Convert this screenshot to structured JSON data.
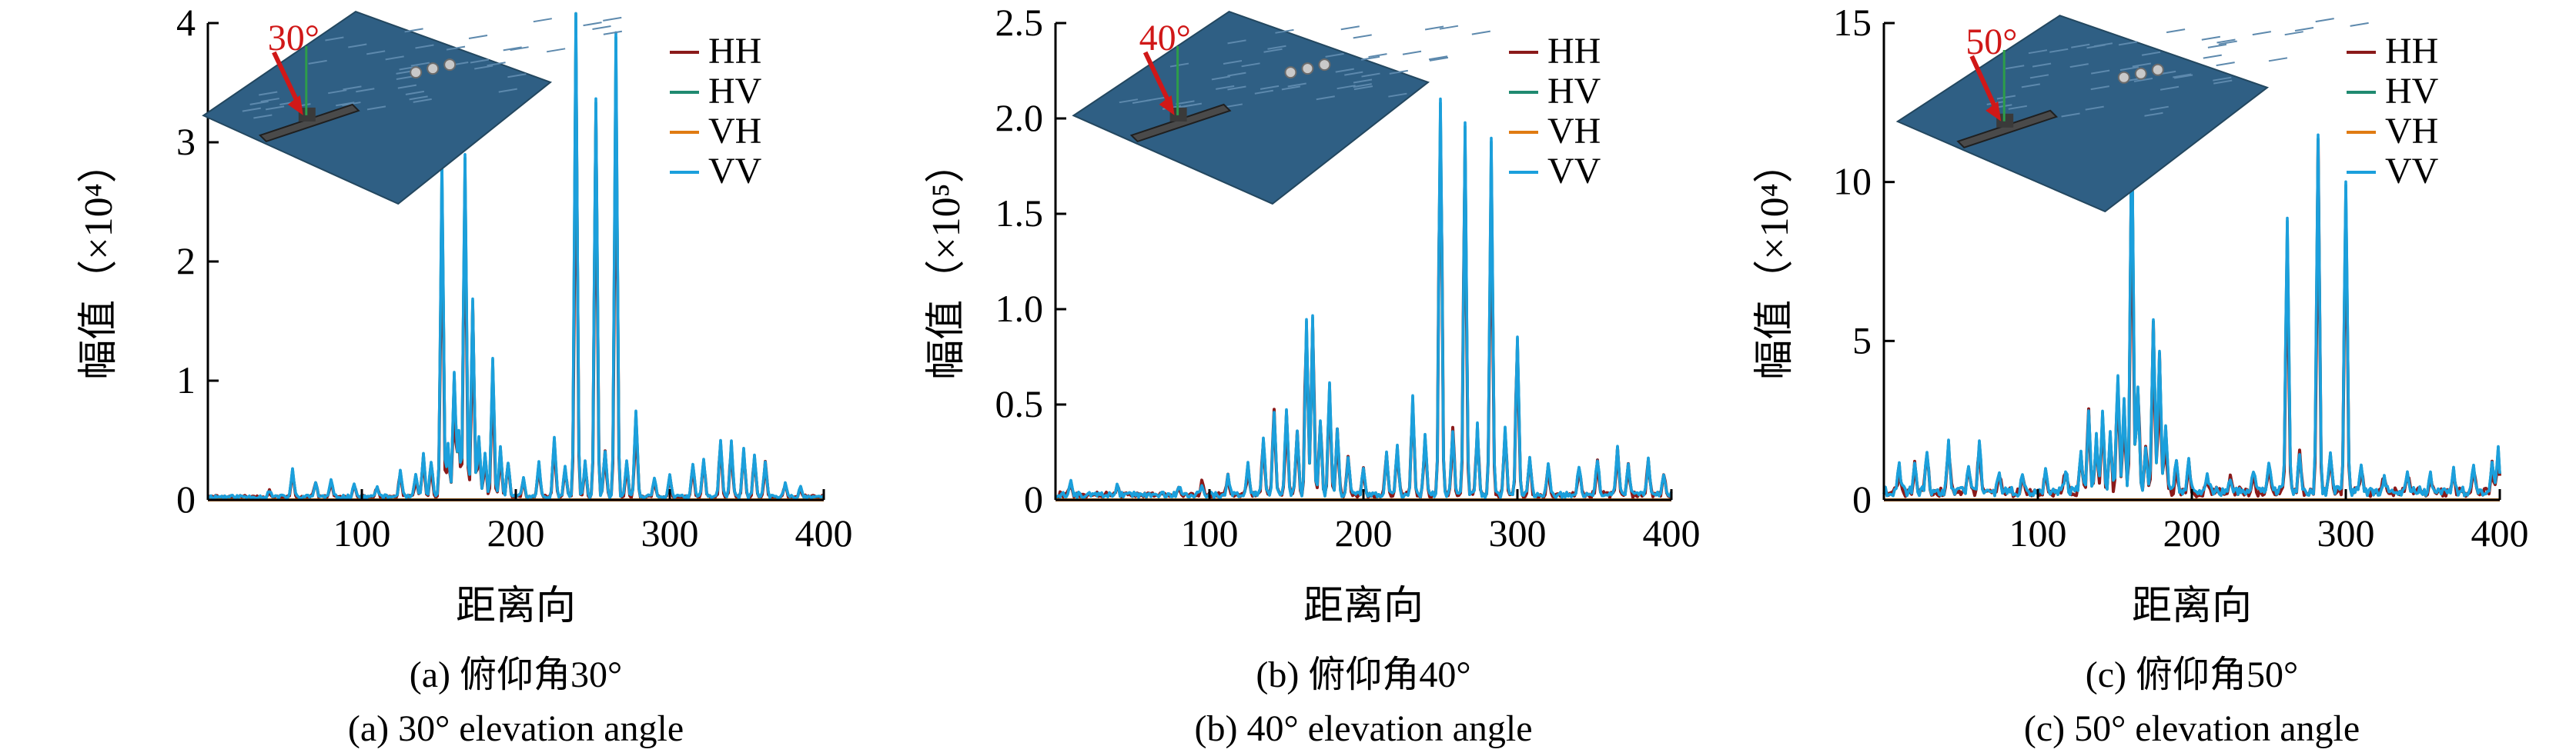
{
  "figure": {
    "colors": {
      "HH": "#8b1a1a",
      "HV": "#1f8a70",
      "VH": "#e07b12",
      "VV": "#1b9fdc",
      "annotation": "#d01818",
      "sea": "#2f5f84"
    },
    "icons": [
      "ship-scene-inset",
      "red-arrow-icon"
    ]
  },
  "chart_data": [
    {
      "type": "line",
      "panel": "a",
      "title": "",
      "xlabel": "距离向",
      "ylabel": "幅值（×10⁴）",
      "xlim": [
        0,
        400
      ],
      "ylim": [
        0,
        4
      ],
      "xticks": [
        "100",
        "200",
        "300",
        "400"
      ],
      "yticks": [
        "0",
        "1",
        "2",
        "3",
        "4"
      ],
      "legend": [
        "HH",
        "HV",
        "VH",
        "VV"
      ],
      "legend_position": "top-right",
      "annotation": "30°",
      "caption_cn": "(a) 俯仰角30°",
      "caption_en": "(a) 30° elevation angle",
      "noise_level": 0.03,
      "hh_scale": 0.88,
      "peaks": [
        [
          40,
          0.05
        ],
        [
          55,
          0.22
        ],
        [
          70,
          0.12
        ],
        [
          80,
          0.14
        ],
        [
          95,
          0.12
        ],
        [
          110,
          0.08
        ],
        [
          125,
          0.22
        ],
        [
          135,
          0.18
        ],
        [
          140,
          0.35
        ],
        [
          145,
          0.3
        ],
        [
          152,
          2.8
        ],
        [
          156,
          0.45
        ],
        [
          160,
          1.0
        ],
        [
          163,
          0.55
        ],
        [
          167,
          2.9
        ],
        [
          172,
          1.7
        ],
        [
          176,
          0.5
        ],
        [
          180,
          0.35
        ],
        [
          185,
          1.15
        ],
        [
          190,
          0.4
        ],
        [
          195,
          0.3
        ],
        [
          205,
          0.15
        ],
        [
          215,
          0.3
        ],
        [
          225,
          0.5
        ],
        [
          232,
          0.25
        ],
        [
          239,
          3.95
        ],
        [
          245,
          0.3
        ],
        [
          252,
          3.35
        ],
        [
          258,
          0.4
        ],
        [
          265,
          3.75
        ],
        [
          272,
          0.3
        ],
        [
          278,
          0.7
        ],
        [
          290,
          0.15
        ],
        [
          300,
          0.18
        ],
        [
          315,
          0.28
        ],
        [
          322,
          0.32
        ],
        [
          333,
          0.5
        ],
        [
          340,
          0.45
        ],
        [
          348,
          0.4
        ],
        [
          355,
          0.35
        ],
        [
          362,
          0.3
        ],
        [
          375,
          0.12
        ],
        [
          385,
          0.08
        ]
      ]
    },
    {
      "type": "line",
      "panel": "b",
      "title": "",
      "xlabel": "距离向",
      "ylabel": "幅值（×10⁵）",
      "xlim": [
        0,
        400
      ],
      "ylim": [
        0,
        2.5
      ],
      "xticks": [
        "100",
        "200",
        "300",
        "400"
      ],
      "yticks": [
        "0",
        "0.5",
        "1.0",
        "1.5",
        "2.0",
        "2.5"
      ],
      "legend": [
        "HH",
        "HV",
        "VH",
        "VV"
      ],
      "legend_position": "top-right",
      "annotation": "40°",
      "caption_cn": "(b) 俯仰角40°",
      "caption_en": "(b) 40° elevation angle",
      "noise_level": 0.03,
      "hh_scale": 0.94,
      "peaks": [
        [
          10,
          0.06
        ],
        [
          40,
          0.05
        ],
        [
          80,
          0.05
        ],
        [
          95,
          0.06
        ],
        [
          112,
          0.1
        ],
        [
          125,
          0.15
        ],
        [
          135,
          0.3
        ],
        [
          142,
          0.45
        ],
        [
          150,
          0.45
        ],
        [
          157,
          0.35
        ],
        [
          163,
          0.95
        ],
        [
          167,
          0.9
        ],
        [
          172,
          0.4
        ],
        [
          178,
          0.6
        ],
        [
          183,
          0.35
        ],
        [
          190,
          0.2
        ],
        [
          200,
          0.15
        ],
        [
          215,
          0.2
        ],
        [
          222,
          0.25
        ],
        [
          232,
          0.5
        ],
        [
          240,
          0.3
        ],
        [
          250,
          2.17
        ],
        [
          258,
          0.35
        ],
        [
          266,
          1.9
        ],
        [
          274,
          0.35
        ],
        [
          283,
          1.87
        ],
        [
          292,
          0.35
        ],
        [
          300,
          0.85
        ],
        [
          308,
          0.2
        ],
        [
          320,
          0.15
        ],
        [
          340,
          0.15
        ],
        [
          352,
          0.2
        ],
        [
          365,
          0.25
        ],
        [
          372,
          0.15
        ],
        [
          385,
          0.18
        ],
        [
          395,
          0.1
        ]
      ]
    },
    {
      "type": "line",
      "panel": "c",
      "title": "",
      "xlabel": "距离向",
      "ylabel": "幅值（×10⁴）",
      "xlim": [
        0,
        400
      ],
      "ylim": [
        0,
        15
      ],
      "xticks": [
        "100",
        "200",
        "300",
        "400"
      ],
      "yticks": [
        "0",
        "5",
        "10",
        "15"
      ],
      "legend": [
        "HH",
        "HV",
        "VH",
        "VV"
      ],
      "legend_position": "top-right",
      "annotation": "50°",
      "caption_cn": "(c) 俯仰角50°",
      "caption_en": "(c) 50° elevation angle",
      "noise_level": 0.3,
      "hh_scale": 0.9,
      "peaks": [
        [
          10,
          0.8
        ],
        [
          20,
          0.9
        ],
        [
          28,
          1.2
        ],
        [
          42,
          1.6
        ],
        [
          55,
          0.8
        ],
        [
          62,
          1.5
        ],
        [
          75,
          0.6
        ],
        [
          90,
          0.6
        ],
        [
          105,
          0.8
        ],
        [
          118,
          0.7
        ],
        [
          128,
          1.2
        ],
        [
          133,
          2.6
        ],
        [
          138,
          1.8
        ],
        [
          142,
          2.5
        ],
        [
          147,
          1.9
        ],
        [
          152,
          3.8
        ],
        [
          156,
          2.8
        ],
        [
          161,
          12.0
        ],
        [
          165,
          3.5
        ],
        [
          170,
          1.5
        ],
        [
          175,
          5.5
        ],
        [
          179,
          4.5
        ],
        [
          183,
          2.0
        ],
        [
          190,
          1.0
        ],
        [
          198,
          1.0
        ],
        [
          210,
          0.5
        ],
        [
          225,
          0.4
        ],
        [
          240,
          0.6
        ],
        [
          250,
          1.0
        ],
        [
          262,
          9.0
        ],
        [
          270,
          1.2
        ],
        [
          282,
          11.2
        ],
        [
          290,
          1.3
        ],
        [
          300,
          10.2
        ],
        [
          310,
          0.8
        ],
        [
          325,
          0.5
        ],
        [
          340,
          0.5
        ],
        [
          355,
          0.5
        ],
        [
          370,
          0.6
        ],
        [
          383,
          0.8
        ],
        [
          395,
          0.9
        ],
        [
          399,
          1.3
        ]
      ]
    }
  ]
}
